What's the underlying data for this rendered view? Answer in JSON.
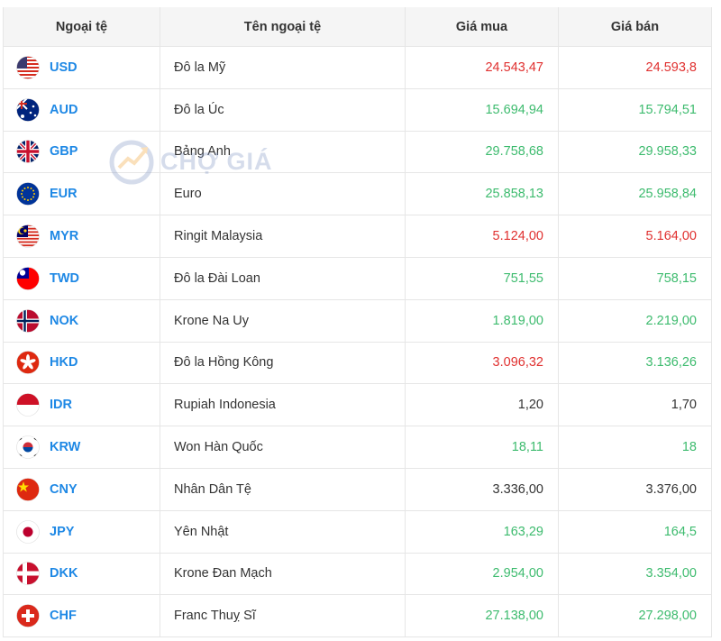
{
  "header": [
    "Ngoại tệ",
    "Tên ngoại tệ",
    "Giá mua",
    "Giá bán"
  ],
  "watermark": "CHỢ GIÁ",
  "rows": [
    {
      "code": "USD",
      "name": "Đô la Mỹ",
      "buy": "24.543,47",
      "sell": "24.593,8",
      "buy_color": "#e0302f",
      "sell_color": "#e0302f"
    },
    {
      "code": "AUD",
      "name": "Đô la Úc",
      "buy": "15.694,94",
      "sell": "15.794,51",
      "buy_color": "#3dbb6e",
      "sell_color": "#3dbb6e"
    },
    {
      "code": "GBP",
      "name": "Bảng Anh",
      "buy": "29.758,68",
      "sell": "29.958,33",
      "buy_color": "#3dbb6e",
      "sell_color": "#3dbb6e"
    },
    {
      "code": "EUR",
      "name": "Euro",
      "buy": "25.858,13",
      "sell": "25.958,84",
      "buy_color": "#3dbb6e",
      "sell_color": "#3dbb6e"
    },
    {
      "code": "MYR",
      "name": "Ringit Malaysia",
      "buy": "5.124,00",
      "sell": "5.164,00",
      "buy_color": "#e0302f",
      "sell_color": "#e0302f"
    },
    {
      "code": "TWD",
      "name": "Đô la Đài Loan",
      "buy": "751,55",
      "sell": "758,15",
      "buy_color": "#3dbb6e",
      "sell_color": "#3dbb6e"
    },
    {
      "code": "NOK",
      "name": "Krone Na Uy",
      "buy": "1.819,00",
      "sell": "2.219,00",
      "buy_color": "#3dbb6e",
      "sell_color": "#3dbb6e"
    },
    {
      "code": "HKD",
      "name": "Đô la Hồng Kông",
      "buy": "3.096,32",
      "sell": "3.136,26",
      "buy_color": "#e0302f",
      "sell_color": "#3dbb6e"
    },
    {
      "code": "IDR",
      "name": "Rupiah Indonesia",
      "buy": "1,20",
      "sell": "1,70",
      "buy_color": "#333333",
      "sell_color": "#333333"
    },
    {
      "code": "KRW",
      "name": "Won Hàn Quốc",
      "buy": "18,11",
      "sell": "18",
      "buy_color": "#3dbb6e",
      "sell_color": "#3dbb6e"
    },
    {
      "code": "CNY",
      "name": "Nhân Dân Tệ",
      "buy": "3.336,00",
      "sell": "3.376,00",
      "buy_color": "#333333",
      "sell_color": "#333333"
    },
    {
      "code": "JPY",
      "name": "Yên Nhật",
      "buy": "163,29",
      "sell": "164,5",
      "buy_color": "#3dbb6e",
      "sell_color": "#3dbb6e"
    },
    {
      "code": "DKK",
      "name": "Krone Đan Mạch",
      "buy": "2.954,00",
      "sell": "3.354,00",
      "buy_color": "#3dbb6e",
      "sell_color": "#3dbb6e"
    },
    {
      "code": "CHF",
      "name": "Franc Thuỵ Sĩ",
      "buy": "27.138,00",
      "sell": "27.298,00",
      "buy_color": "#3dbb6e",
      "sell_color": "#3dbb6e"
    }
  ]
}
